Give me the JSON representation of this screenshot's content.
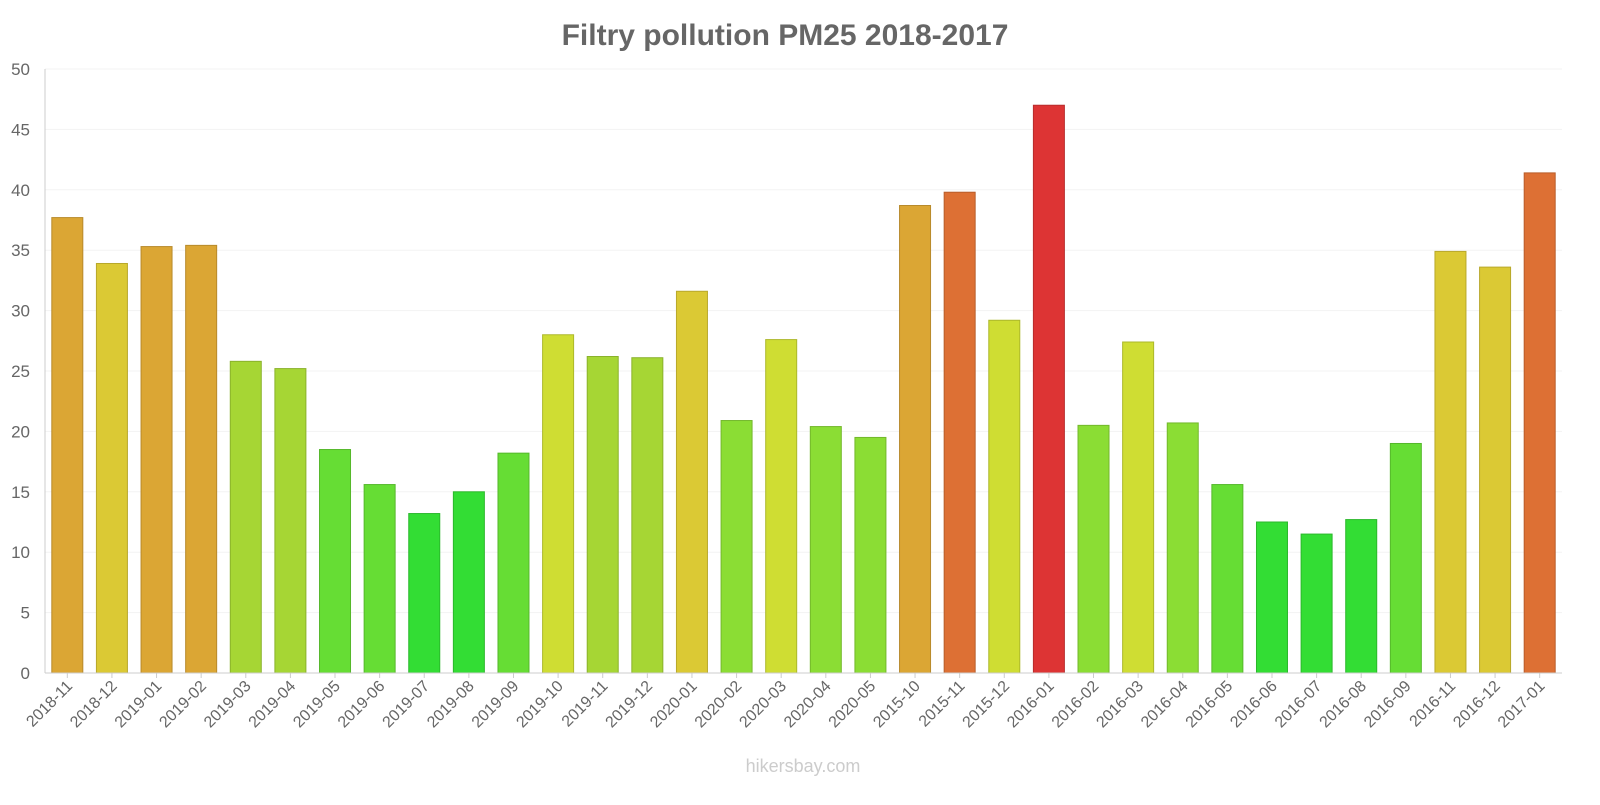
{
  "chart_data": {
    "type": "bar",
    "title": "Filtry pollution PM25 2018-2017",
    "xlabel": "",
    "ylabel": "",
    "ylim": [
      0,
      50
    ],
    "yticks": [
      0,
      5,
      10,
      15,
      20,
      25,
      30,
      35,
      40,
      45,
      50
    ],
    "grid": true,
    "categories": [
      "2018-11",
      "2018-12",
      "2019-01",
      "2019-02",
      "2019-03",
      "2019-04",
      "2019-05",
      "2019-06",
      "2019-07",
      "2019-08",
      "2019-09",
      "2019-10",
      "2019-11",
      "2019-12",
      "2020-01",
      "2020-02",
      "2020-03",
      "2020-04",
      "2020-05",
      "2015-10",
      "2015-11",
      "2015-12",
      "2016-01",
      "2016-02",
      "2016-03",
      "2016-04",
      "2016-05",
      "2016-06",
      "2016-07",
      "2016-08",
      "2016-09",
      "2016-11",
      "2016-12",
      "2017-01"
    ],
    "values": [
      37.7,
      33.9,
      35.3,
      35.4,
      25.8,
      25.2,
      18.5,
      15.6,
      13.2,
      15.0,
      18.2,
      28.0,
      26.2,
      26.1,
      31.6,
      20.9,
      27.6,
      20.4,
      19.5,
      38.7,
      39.8,
      29.2,
      47.0,
      20.5,
      27.4,
      20.7,
      15.6,
      12.5,
      11.5,
      12.7,
      19.0,
      34.9,
      33.6,
      41.4
    ]
  },
  "colors": {
    "title": "#666666",
    "axis_text": "#666666",
    "grid": "#f3f3f3",
    "watermark": "#cccccc"
  },
  "watermark": "hikersbay.com"
}
